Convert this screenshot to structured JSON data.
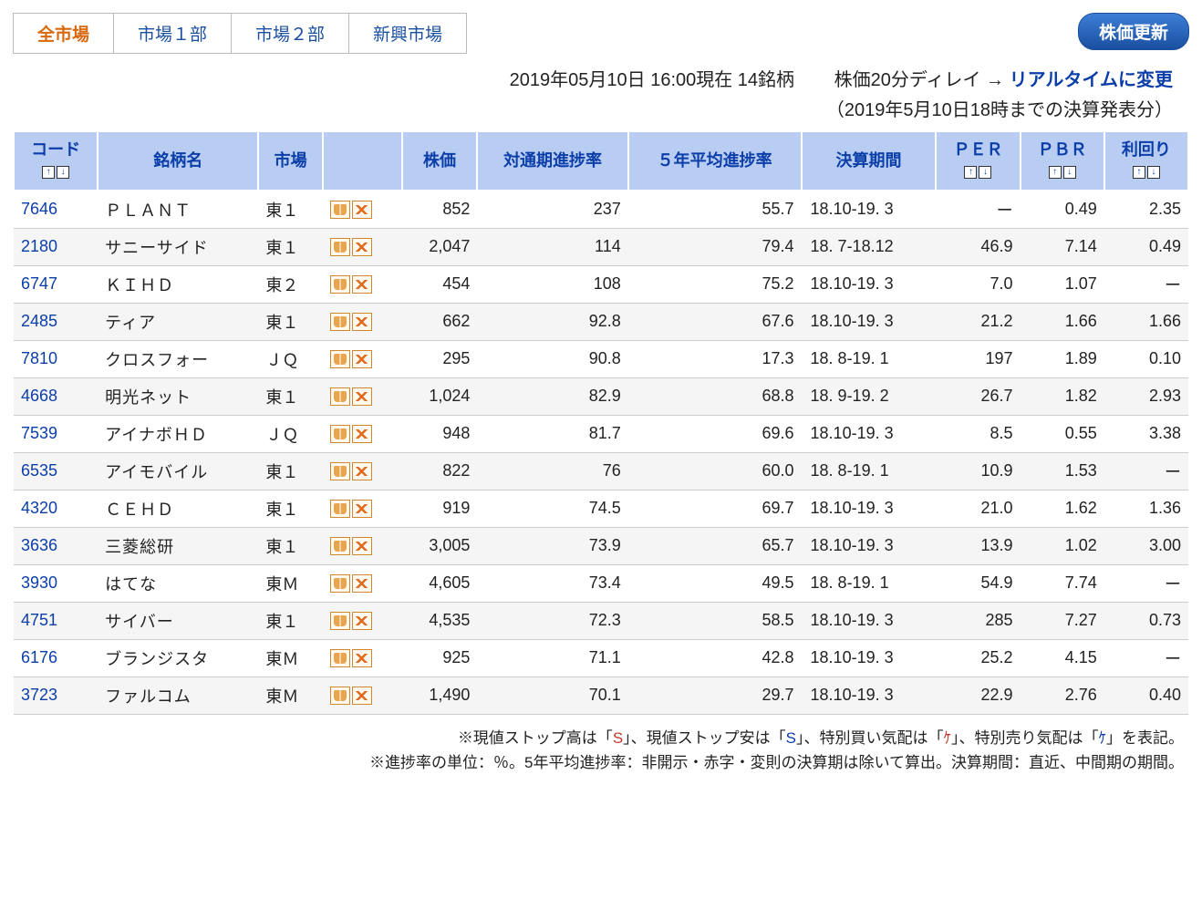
{
  "tabs": [
    {
      "label": "全市場",
      "active": true
    },
    {
      "label": "市場１部",
      "active": false
    },
    {
      "label": "市場２部",
      "active": false
    },
    {
      "label": "新興市場",
      "active": false
    }
  ],
  "update_button": "株価更新",
  "timestamp": "2019年05月10日  16:00現在  14銘柄",
  "delay_text": "株価20分ディレイ → ",
  "realtime_link": "リアルタイムに変更",
  "subline": "（2019年5月10日18時までの決算発表分）",
  "columns": {
    "code": "コード",
    "name": "銘柄名",
    "market": "市場",
    "icons": "",
    "price": "株価",
    "progress": "対通期進捗率",
    "avg5y": "５年平均進捗率",
    "period": "決算期間",
    "per": "ＰＥＲ",
    "pbr": "ＰＢＲ",
    "yield": "利回り"
  },
  "rows": [
    {
      "code": "7646",
      "name": "ＰＬＡＮＴ",
      "market": "東１",
      "price": "852",
      "progress": "237",
      "avg5y": "55.7",
      "period": "18.10-19. 3",
      "per": "ー",
      "pbr": "0.49",
      "yield": "2.35"
    },
    {
      "code": "2180",
      "name": "サニーサイド",
      "market": "東１",
      "price": "2,047",
      "progress": "114",
      "avg5y": "79.4",
      "period": "18. 7-18.12",
      "per": "46.9",
      "pbr": "7.14",
      "yield": "0.49"
    },
    {
      "code": "6747",
      "name": "ＫＩＨＤ",
      "market": "東２",
      "price": "454",
      "progress": "108",
      "avg5y": "75.2",
      "period": "18.10-19. 3",
      "per": "7.0",
      "pbr": "1.07",
      "yield": "ー"
    },
    {
      "code": "2485",
      "name": "ティア",
      "market": "東１",
      "price": "662",
      "progress": "92.8",
      "avg5y": "67.6",
      "period": "18.10-19. 3",
      "per": "21.2",
      "pbr": "1.66",
      "yield": "1.66"
    },
    {
      "code": "7810",
      "name": "クロスフォー",
      "market": "ＪＱ",
      "price": "295",
      "progress": "90.8",
      "avg5y": "17.3",
      "period": "18. 8-19. 1",
      "per": "197",
      "pbr": "1.89",
      "yield": "0.10"
    },
    {
      "code": "4668",
      "name": "明光ネット",
      "market": "東１",
      "price": "1,024",
      "progress": "82.9",
      "avg5y": "68.8",
      "period": "18. 9-19. 2",
      "per": "26.7",
      "pbr": "1.82",
      "yield": "2.93"
    },
    {
      "code": "7539",
      "name": "アイナボＨＤ",
      "market": "ＪＱ",
      "price": "948",
      "progress": "81.7",
      "avg5y": "69.6",
      "period": "18.10-19. 3",
      "per": "8.5",
      "pbr": "0.55",
      "yield": "3.38"
    },
    {
      "code": "6535",
      "name": "アイモバイル",
      "market": "東１",
      "price": "822",
      "progress": "76",
      "avg5y": "60.0",
      "period": "18. 8-19. 1",
      "per": "10.9",
      "pbr": "1.53",
      "yield": "ー"
    },
    {
      "code": "4320",
      "name": "ＣＥＨＤ",
      "market": "東１",
      "price": "919",
      "progress": "74.5",
      "avg5y": "69.7",
      "period": "18.10-19. 3",
      "per": "21.0",
      "pbr": "1.62",
      "yield": "1.36"
    },
    {
      "code": "3636",
      "name": "三菱総研",
      "market": "東１",
      "price": "3,005",
      "progress": "73.9",
      "avg5y": "65.7",
      "period": "18.10-19. 3",
      "per": "13.9",
      "pbr": "1.02",
      "yield": "3.00"
    },
    {
      "code": "3930",
      "name": "はてな",
      "market": "東Ｍ",
      "price": "4,605",
      "progress": "73.4",
      "avg5y": "49.5",
      "period": "18. 8-19. 1",
      "per": "54.9",
      "pbr": "7.74",
      "yield": "ー"
    },
    {
      "code": "4751",
      "name": "サイバー",
      "market": "東１",
      "price": "4,535",
      "progress": "72.3",
      "avg5y": "58.5",
      "period": "18.10-19. 3",
      "per": "285",
      "pbr": "7.27",
      "yield": "0.73"
    },
    {
      "code": "6176",
      "name": "ブランジスタ",
      "market": "東Ｍ",
      "price": "925",
      "progress": "71.1",
      "avg5y": "42.8",
      "period": "18.10-19. 3",
      "per": "25.2",
      "pbr": "4.15",
      "yield": "ー"
    },
    {
      "code": "3723",
      "name": "ファルコム",
      "market": "東Ｍ",
      "price": "1,490",
      "progress": "70.1",
      "avg5y": "29.7",
      "period": "18.10-19. 3",
      "per": "22.9",
      "pbr": "2.76",
      "yield": "0.40"
    }
  ],
  "footnote1_a": "※現値ストップ高は「",
  "footnote1_s1": "S",
  "footnote1_b": "」、現値ストップ安は「",
  "footnote1_s2": "S",
  "footnote1_c": "」、特別買い気配は「",
  "footnote1_k1": "ｹ",
  "footnote1_d": "」、特別売り気配は「",
  "footnote1_k2": "ｹ",
  "footnote1_e": "」を表記。",
  "footnote2": "※進捗率の単位：％。5年平均進捗率：非開示・赤字・変則の決算期は除いて算出。決算期間：直近、中間期の期間。"
}
